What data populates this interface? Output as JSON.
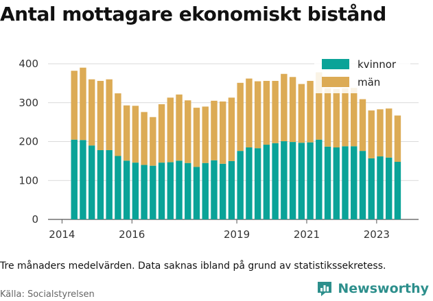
{
  "title": "Antal mottagare ekonomiskt bistånd",
  "note": "Tre månaders medelvärden. Data saknas ibland på grund av statistikssekretess.",
  "source": "Källa: Socialstyrelsen",
  "brand": "Newsworthy",
  "colors": {
    "kvinnor": "#0aa398",
    "man": "#dcab55",
    "grid": "#d9d9d9",
    "brand": "#2d8f8c"
  },
  "chart_data": {
    "type": "bar",
    "stacked": true,
    "ylim": [
      0,
      400
    ],
    "yticks": [
      0,
      100,
      200,
      300,
      400
    ],
    "xticks": [
      {
        "label": "2014",
        "x": 2014
      },
      {
        "label": "2016",
        "x": 2016
      },
      {
        "label": "2019",
        "x": 2019
      },
      {
        "label": "2021",
        "x": 2021
      },
      {
        "label": "2023",
        "x": 2023
      }
    ],
    "legend_position": "top-right",
    "grid": "horizontal",
    "series": [
      {
        "name": "kvinnor",
        "color": "#0aa398",
        "values": [
          205,
          204,
          190,
          178,
          178,
          163,
          151,
          146,
          140,
          138,
          146,
          147,
          151,
          145,
          135,
          145,
          152,
          143,
          150,
          176,
          185,
          183,
          192,
          196,
          201,
          199,
          197,
          198,
          205,
          187,
          185,
          188,
          188,
          176,
          157,
          162,
          159,
          148
        ]
      },
      {
        "name": "män",
        "color": "#dcab55",
        "values": [
          177,
          186,
          170,
          178,
          182,
          161,
          142,
          146,
          136,
          125,
          150,
          166,
          170,
          161,
          152,
          145,
          153,
          160,
          163,
          175,
          177,
          172,
          164,
          160,
          173,
          167,
          151,
          158,
          173,
          150,
          150,
          149,
          150,
          133,
          123,
          121,
          126,
          119
        ]
      }
    ],
    "x": [
      2014.35,
      2014.6,
      2014.85,
      2015.1,
      2015.35,
      2015.6,
      2015.85,
      2016.1,
      2016.35,
      2016.6,
      2016.85,
      2017.1,
      2017.35,
      2017.6,
      2017.85,
      2018.1,
      2018.35,
      2018.6,
      2018.85,
      2019.1,
      2019.35,
      2019.6,
      2019.85,
      2020.1,
      2020.35,
      2020.6,
      2020.85,
      2021.1,
      2021.35,
      2021.6,
      2021.85,
      2022.1,
      2022.35,
      2022.6,
      2022.85,
      2023.1,
      2023.35,
      2023.6
    ]
  }
}
